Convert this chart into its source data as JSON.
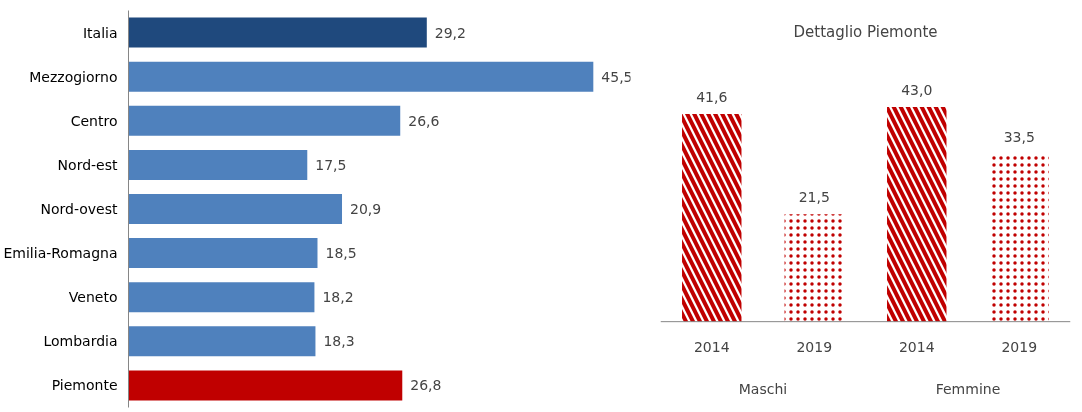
{
  "chart_data": [
    {
      "type": "bar",
      "orientation": "horizontal",
      "categories": [
        "Italia",
        "Mezzogiorno",
        "Centro",
        "Nord-est",
        "Nord-ovest",
        "Emilia-Romagna",
        "Veneto",
        "Lombardia",
        "Piemonte"
      ],
      "values": [
        29.2,
        45.5,
        26.6,
        17.5,
        20.9,
        18.5,
        18.2,
        18.3,
        26.8
      ],
      "value_labels": [
        "29,2",
        "45,5",
        "26,6",
        "17,5",
        "20,9",
        "18,5",
        "18,2",
        "18,3",
        "26,8"
      ],
      "colors": [
        "#1f497d",
        "#4f81bd",
        "#4f81bd",
        "#4f81bd",
        "#4f81bd",
        "#4f81bd",
        "#4f81bd",
        "#4f81bd",
        "#c00000"
      ]
    },
    {
      "type": "bar",
      "title": "Dettaglio Piemonte",
      "categories": [
        "2014",
        "2019",
        "2014",
        "2019"
      ],
      "values": [
        41.6,
        21.5,
        43.0,
        33.5
      ],
      "value_labels": [
        "41,6",
        "21,5",
        "43,0",
        "33,5"
      ],
      "color": "#c00000",
      "annotations": [
        "Maschi",
        "Femmine"
      ]
    }
  ]
}
